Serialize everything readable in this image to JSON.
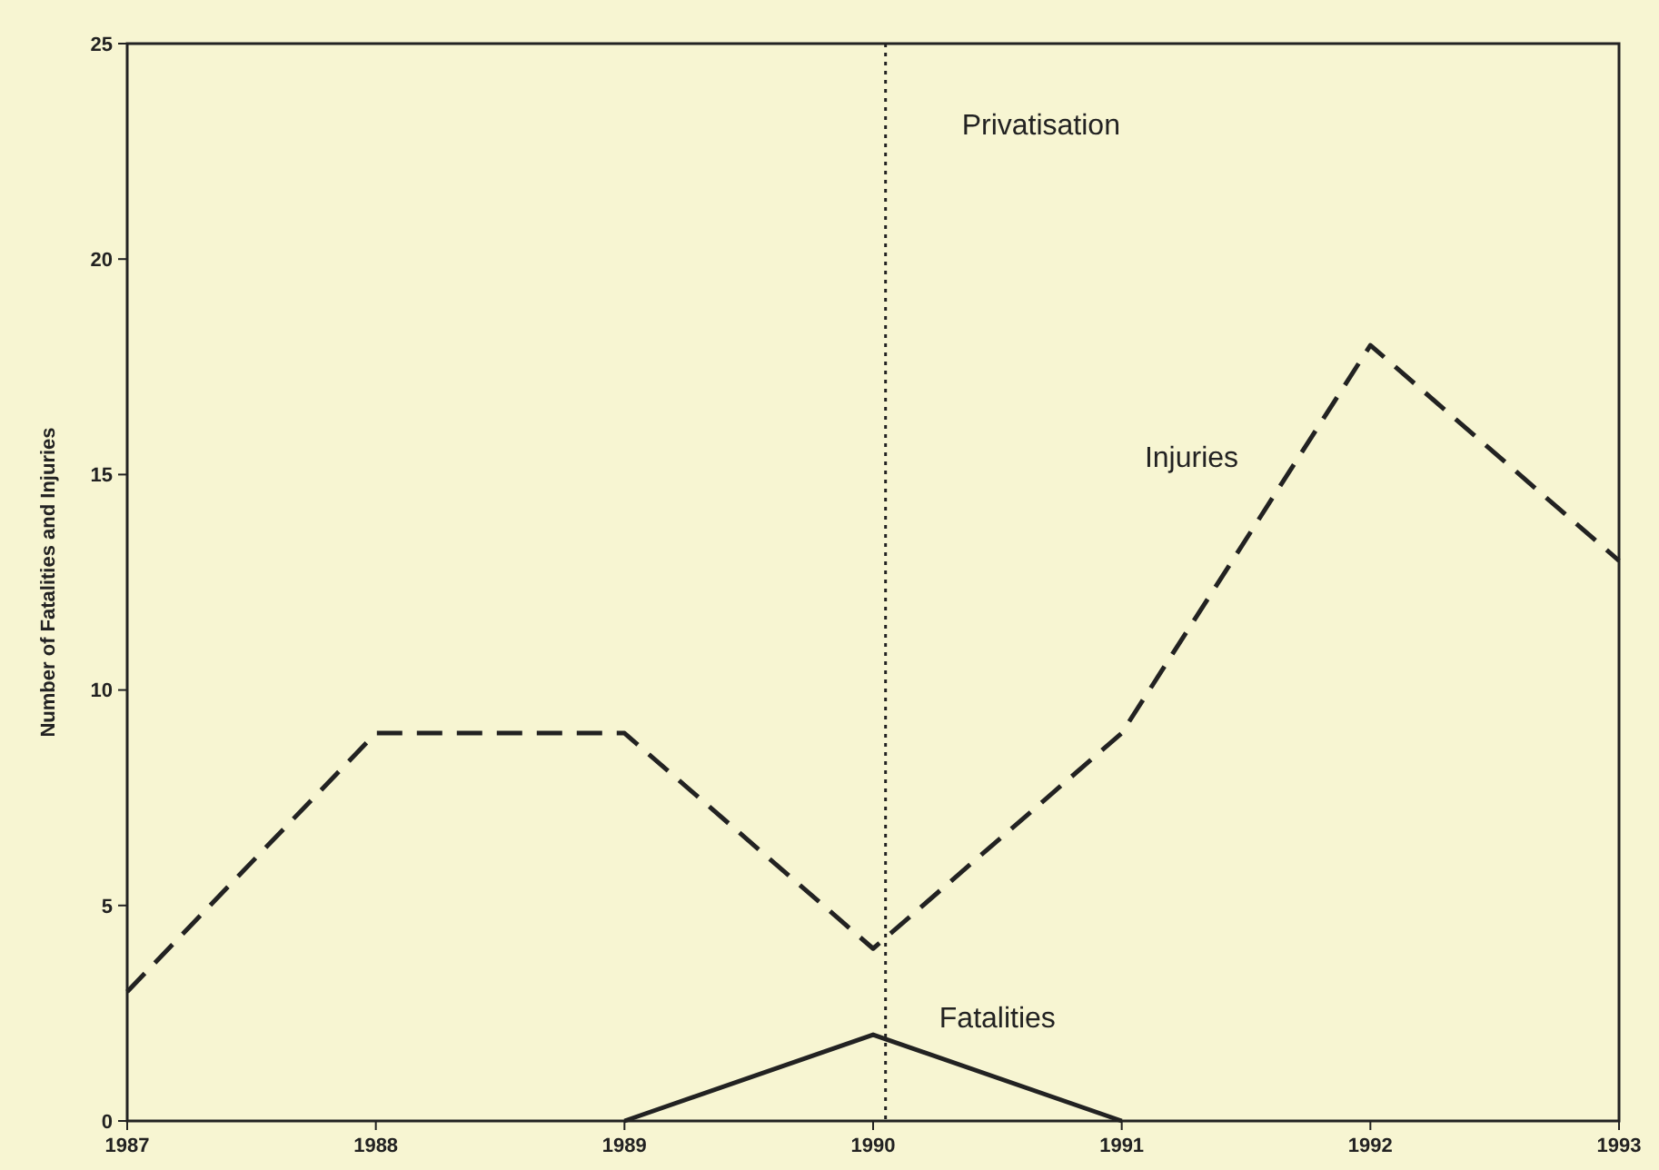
{
  "chart_data": {
    "type": "line",
    "ylabel": "Number of Fatalities and Injuries",
    "x": [
      1987,
      1988,
      1989,
      1990,
      1991,
      1992,
      1993
    ],
    "xlim": [
      1987,
      1993
    ],
    "xticks": [
      1987,
      1988,
      1989,
      1990,
      1991,
      1992,
      1993
    ],
    "ylim": [
      0,
      25
    ],
    "yticks": [
      0,
      5,
      10,
      15,
      20,
      25
    ],
    "grid": false,
    "marker": "none",
    "series": [
      {
        "name": "Injuries",
        "color": "#222222",
        "line_style": "dashed",
        "values": [
          3,
          9,
          9,
          4,
          9,
          18,
          13
        ]
      },
      {
        "name": "Fatalities",
        "color": "#222222",
        "line_style": "solid",
        "values": [
          null,
          null,
          0,
          2,
          0,
          null,
          null
        ]
      }
    ],
    "ref_lines": [
      {
        "axis": "x",
        "value": 1990.05,
        "label": "Privatisation",
        "line_style": "dotted",
        "color": "#222222"
      }
    ]
  }
}
